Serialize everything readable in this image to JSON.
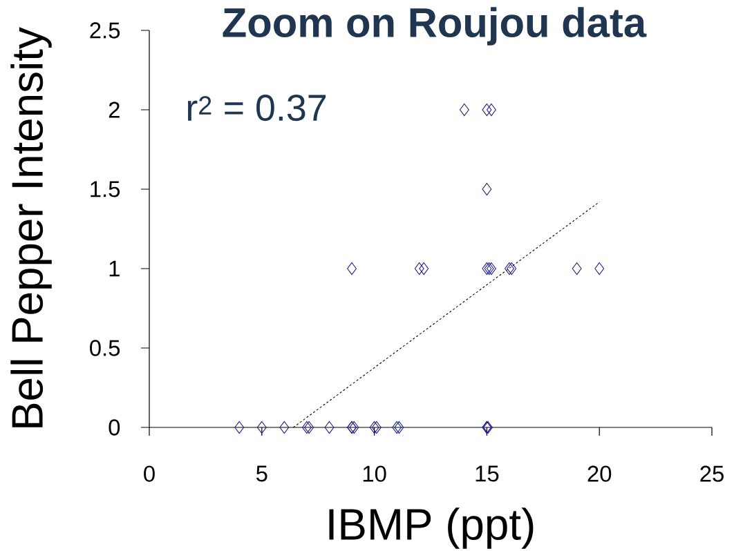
{
  "chart_data": {
    "type": "scatter",
    "title": "Zoom on Roujou data",
    "xlabel": "IBMP (ppt)",
    "ylabel": "Bell Pepper Intensity",
    "annotations": [
      "r$^{2}$ = 0.37"
    ],
    "xlim": [
      0,
      25
    ],
    "ylim": [
      0,
      2.5
    ],
    "xticks": [
      0,
      5,
      10,
      15,
      20,
      25
    ],
    "yticks": [
      0,
      0.5,
      1,
      1.5,
      2,
      2.5
    ],
    "grid": false,
    "marker": "diamond",
    "series": [
      {
        "color": "#1a1a8c",
        "x": [
          4,
          5,
          6,
          7,
          7.1,
          8,
          9,
          9.1,
          9,
          10,
          10.1,
          11,
          11.1,
          15,
          15.05,
          15,
          9,
          12,
          12.2,
          15,
          15.1,
          15.2,
          16,
          16.1,
          19,
          20,
          15,
          14,
          15,
          15.2
        ],
        "values": [
          0,
          0,
          0,
          0,
          0,
          0,
          0,
          0,
          0,
          0,
          0,
          0,
          0,
          0,
          0,
          0,
          1,
          1,
          1,
          1,
          1,
          1,
          1,
          1,
          1,
          1,
          1.5,
          2,
          2,
          2
        ]
      },
      {
        "type": "line",
        "color": "#000000",
        "line_style": "dashed",
        "marker": "none",
        "x": [
          6.4,
          20
        ],
        "values": [
          0,
          1.42
        ]
      }
    ]
  }
}
